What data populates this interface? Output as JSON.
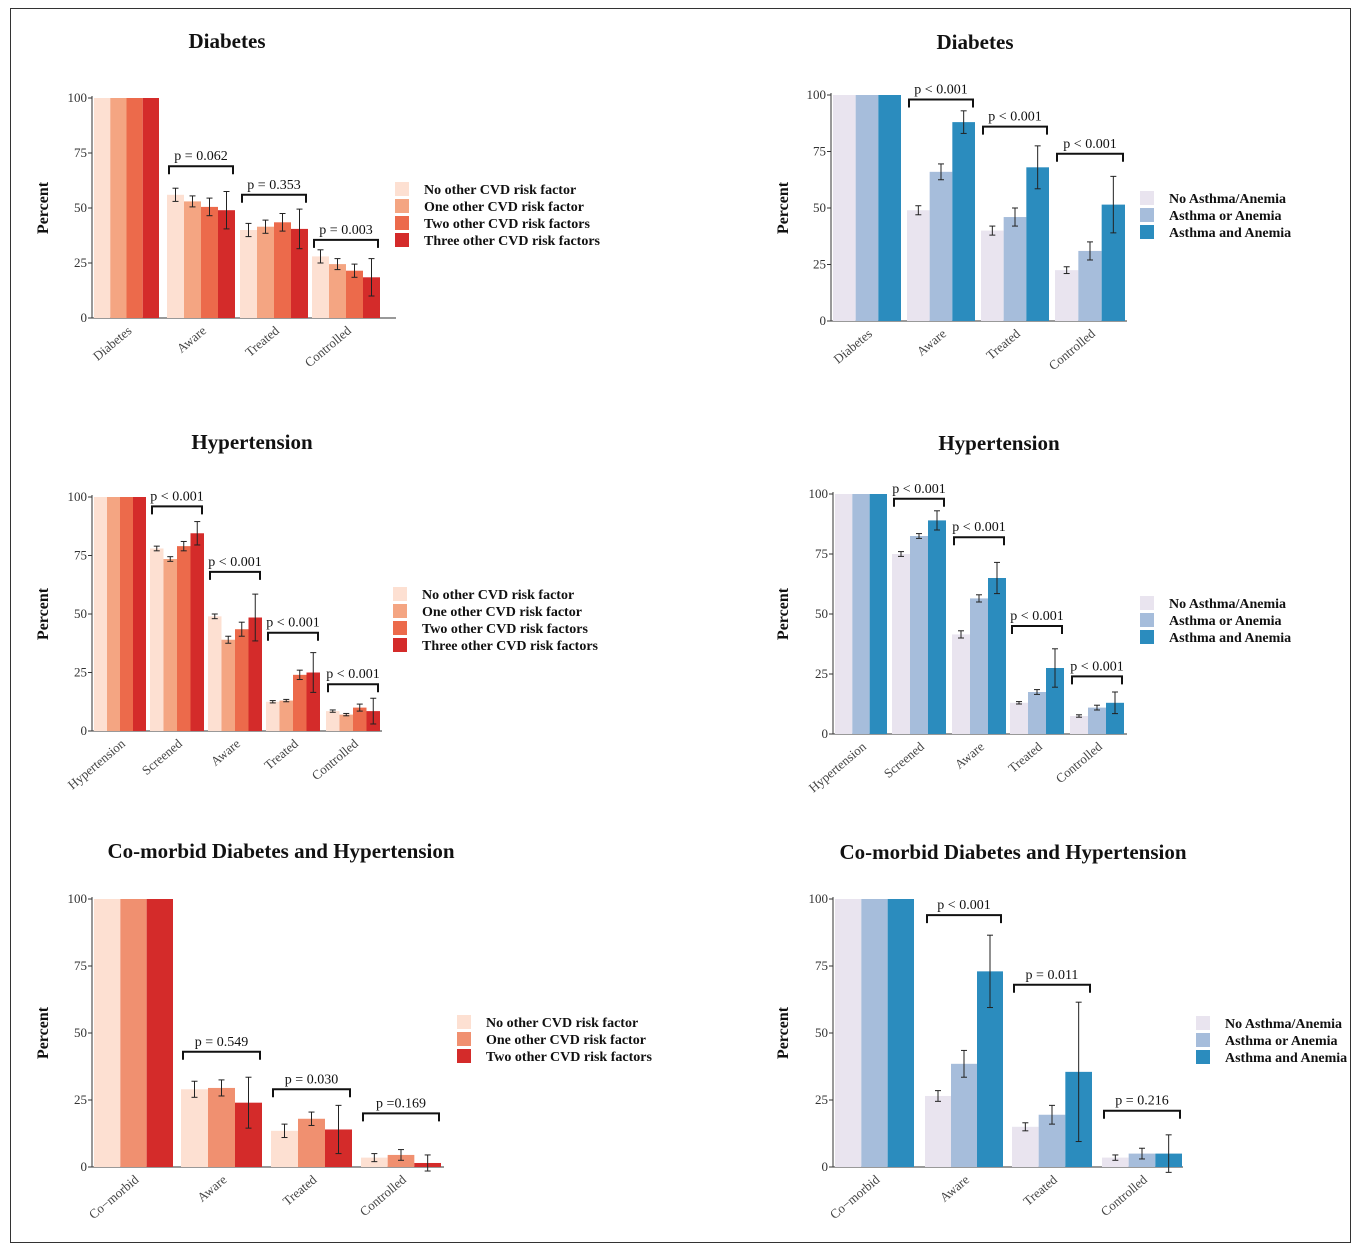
{
  "figure": {
    "colors": {
      "red_palette": [
        "#fde0d2",
        "#f4a582",
        "#ec6a4b",
        "#d42b2a"
      ],
      "red_palette_3": [
        "#fde0d2",
        "#f09070",
        "#d42b2a"
      ],
      "blue_palette": [
        "#e9e4ef",
        "#a6bddb",
        "#2b8cbe"
      ]
    }
  },
  "chart_data": [
    {
      "id": "A",
      "type": "bar",
      "title": "Diabetes",
      "xlabel": "",
      "ylabel": "Percent",
      "ylim": [
        0,
        100
      ],
      "yticks": [
        "0",
        "25",
        "50",
        "75",
        "100"
      ],
      "categories": [
        "Diabetes",
        "Aware",
        "Treated",
        "Controlled"
      ],
      "palette": "red_palette",
      "legend_position": "right",
      "series": [
        {
          "name": "No other CVD risk factor",
          "values": [
            100,
            56,
            40,
            28
          ],
          "errors": [
            0,
            3,
            3,
            3
          ]
        },
        {
          "name": "One other CVD risk factor",
          "values": [
            100,
            53,
            41.5,
            24.5
          ],
          "errors": [
            0,
            2.5,
            3,
            2.5
          ]
        },
        {
          "name": "Two other CVD risk factors",
          "values": [
            100,
            50.5,
            43.5,
            21.5
          ],
          "errors": [
            0,
            4,
            4,
            3
          ]
        },
        {
          "name": "Three other CVD risk factors",
          "values": [
            100,
            49,
            40.5,
            18.5
          ],
          "errors": [
            0,
            8.5,
            9,
            8.5
          ]
        }
      ],
      "annotations": [
        {
          "text": "p = 0.062",
          "from": 1,
          "to": 1,
          "level": 69
        },
        {
          "text": "p = 0.353",
          "from": 2,
          "to": 2,
          "level": 56
        },
        {
          "text": "p = 0.003",
          "from": 3,
          "to": 3,
          "level": 35.5
        }
      ]
    },
    {
      "id": "B",
      "type": "bar",
      "title": "Diabetes",
      "xlabel": "",
      "ylabel": "Percent",
      "ylim": [
        0,
        100
      ],
      "yticks": [
        "0",
        "25",
        "50",
        "75",
        "100"
      ],
      "categories": [
        "Diabetes",
        "Aware",
        "Treated",
        "Controlled"
      ],
      "palette": "blue_palette",
      "legend_position": "right",
      "series": [
        {
          "name": "No Asthma/Anemia",
          "values": [
            100,
            49,
            40,
            22.5
          ],
          "errors": [
            0,
            2,
            2,
            1.5
          ]
        },
        {
          "name": "Asthma or Anemia",
          "values": [
            100,
            66,
            46,
            31
          ],
          "errors": [
            0,
            3.5,
            4,
            4
          ]
        },
        {
          "name": "Asthma and Anemia",
          "values": [
            100,
            88,
            68,
            51.5
          ],
          "errors": [
            0,
            5,
            9.5,
            12.5
          ]
        }
      ],
      "annotations": [
        {
          "text": "p < 0.001",
          "from": 1,
          "to": 1,
          "level": 98
        },
        {
          "text": "p < 0.001",
          "from": 2,
          "to": 2,
          "level": 86
        },
        {
          "text": "p < 0.001",
          "from": 3,
          "to": 3,
          "level": 74
        }
      ]
    },
    {
      "id": "C",
      "type": "bar",
      "title": "Hypertension",
      "xlabel": "",
      "ylabel": "Percent",
      "ylim": [
        0,
        100
      ],
      "yticks": [
        "0",
        "25",
        "50",
        "75",
        "100"
      ],
      "categories": [
        "Hypertension",
        "Screened",
        "Aware",
        "Treated",
        "Controlled"
      ],
      "palette": "red_palette",
      "legend_position": "right",
      "series": [
        {
          "name": "No other CVD risk factor",
          "values": [
            100,
            78,
            49,
            12.5,
            8.5
          ],
          "errors": [
            0,
            1,
            1,
            0.5,
            0.5
          ]
        },
        {
          "name": "One other CVD risk factor",
          "values": [
            100,
            73.5,
            39,
            13,
            7
          ],
          "errors": [
            0,
            1,
            1.5,
            0.5,
            0.5
          ]
        },
        {
          "name": "Two other CVD risk factors",
          "values": [
            100,
            79,
            43.5,
            24,
            10
          ],
          "errors": [
            0,
            2,
            3,
            2,
            1.5
          ]
        },
        {
          "name": "Three other CVD risk factors",
          "values": [
            100,
            84.5,
            48.5,
            25,
            8.5
          ],
          "errors": [
            0,
            5,
            10,
            8.5,
            5.5
          ]
        }
      ],
      "annotations": [
        {
          "text": "p < 0.001",
          "from": 1,
          "to": 1,
          "level": 96
        },
        {
          "text": "p < 0.001",
          "from": 2,
          "to": 2,
          "level": 68
        },
        {
          "text": "p < 0.001",
          "from": 3,
          "to": 3,
          "level": 42
        },
        {
          "text": "p < 0.001",
          "from": 4,
          "to": 4,
          "level": 20
        }
      ]
    },
    {
      "id": "D",
      "type": "bar",
      "title": "Hypertension",
      "xlabel": "",
      "ylabel": "Percent",
      "ylim": [
        0,
        100
      ],
      "yticks": [
        "0",
        "25",
        "50",
        "75",
        "100"
      ],
      "categories": [
        "Hypertension",
        "Screened",
        "Aware",
        "Treated",
        "Controlled"
      ],
      "palette": "blue_palette",
      "legend_position": "right",
      "series": [
        {
          "name": "No Asthma/Anemia",
          "values": [
            100,
            75,
            41.5,
            13,
            7.5
          ],
          "errors": [
            0,
            1,
            1.5,
            0.5,
            0.5
          ]
        },
        {
          "name": "Asthma or Anemia",
          "values": [
            100,
            82.5,
            56.5,
            17.5,
            11
          ],
          "errors": [
            0,
            1,
            1.5,
            1,
            1
          ]
        },
        {
          "name": "Asthma and Anemia",
          "values": [
            100,
            89,
            65,
            27.5,
            13
          ],
          "errors": [
            0,
            4,
            6.5,
            8,
            4.5
          ]
        }
      ],
      "annotations": [
        {
          "text": "p < 0.001",
          "from": 1,
          "to": 1,
          "level": 98
        },
        {
          "text": "p < 0.001",
          "from": 2,
          "to": 2,
          "level": 82
        },
        {
          "text": "p < 0.001",
          "from": 3,
          "to": 3,
          "level": 45
        },
        {
          "text": "p < 0.001",
          "from": 4,
          "to": 4,
          "level": 24
        }
      ]
    },
    {
      "id": "E",
      "type": "bar",
      "title": "Co-morbid Diabetes and Hypertension",
      "xlabel": "",
      "ylabel": "Percent",
      "ylim": [
        0,
        100
      ],
      "yticks": [
        "0",
        "25",
        "50",
        "75",
        "100"
      ],
      "categories": [
        "Co−morbid",
        "Aware",
        "Treated",
        "Controlled"
      ],
      "palette": "red_palette_3",
      "legend_position": "right",
      "series": [
        {
          "name": "No other CVD risk factor",
          "values": [
            100,
            29,
            13.5,
            3.5
          ],
          "errors": [
            0,
            3,
            2.5,
            1.5
          ]
        },
        {
          "name": "One other CVD risk factor",
          "values": [
            100,
            29.5,
            18,
            4.5
          ],
          "errors": [
            0,
            3,
            2.5,
            2
          ]
        },
        {
          "name": "Two other CVD risk factors",
          "values": [
            100,
            24,
            14,
            1.5
          ],
          "errors": [
            0,
            9.5,
            9,
            3
          ]
        }
      ],
      "annotations": [
        {
          "text": "p = 0.549",
          "from": 1,
          "to": 1,
          "level": 43
        },
        {
          "text": "p = 0.030",
          "from": 2,
          "to": 2,
          "level": 29
        },
        {
          "text": "p =0.169",
          "from": 3,
          "to": 3,
          "level": 20
        }
      ]
    },
    {
      "id": "F",
      "type": "bar",
      "title": "Co-morbid Diabetes and Hypertension",
      "xlabel": "",
      "ylabel": "Percent",
      "ylim": [
        0,
        100
      ],
      "yticks": [
        "0",
        "25",
        "50",
        "75",
        "100"
      ],
      "categories": [
        "Co−morbid",
        "Aware",
        "Treated",
        "Controlled"
      ],
      "palette": "blue_palette",
      "legend_position": "right",
      "series": [
        {
          "name": "No Asthma/Anemia",
          "values": [
            100,
            26.5,
            15,
            3.5
          ],
          "errors": [
            0,
            2,
            1.5,
            1
          ]
        },
        {
          "name": "Asthma or Anemia",
          "values": [
            100,
            38.5,
            19.5,
            5
          ],
          "errors": [
            0,
            5,
            3.5,
            2
          ]
        },
        {
          "name": "Asthma and Anemia",
          "values": [
            100,
            73,
            35.5,
            5
          ],
          "errors": [
            0,
            13.5,
            26,
            7
          ]
        }
      ],
      "annotations": [
        {
          "text": "p < 0.001",
          "from": 1,
          "to": 1,
          "level": 94
        },
        {
          "text": "p = 0.011",
          "from": 2,
          "to": 2,
          "level": 68
        },
        {
          "text": "p = 0.216",
          "from": 3,
          "to": 3,
          "level": 21
        }
      ]
    }
  ]
}
